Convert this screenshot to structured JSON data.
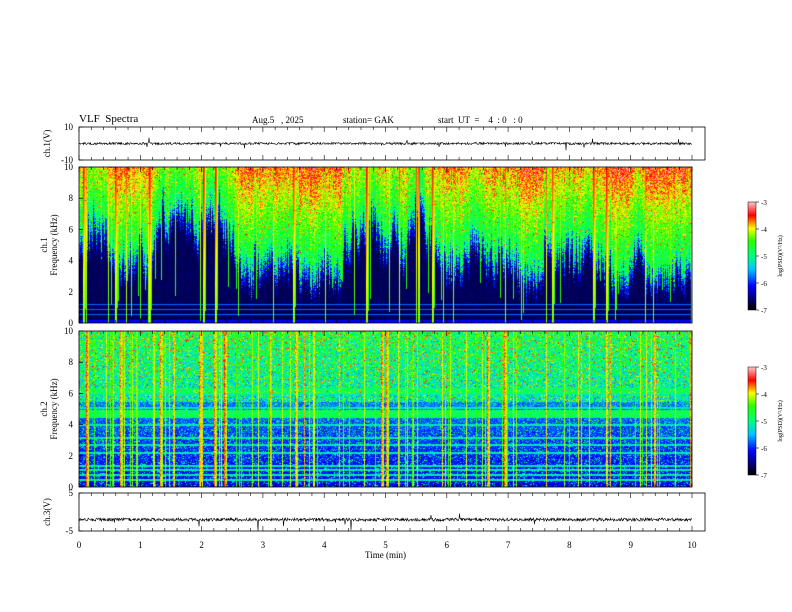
{
  "header": {
    "title": "VLF  Spectra",
    "date": "Aug.5   , 2025",
    "station": "station= GAK",
    "start": "start  UT  =    4  : 0   : 0"
  },
  "chart_data": [
    {
      "type": "line",
      "panel": "ch1-waveform",
      "ylabel": "ch.1(V)",
      "y_ticks": [
        "10",
        "-10"
      ],
      "ylim": [
        -10,
        10
      ],
      "baseline": 0
    },
    {
      "type": "heatmap",
      "panel": "ch1-spectrogram",
      "ylabel_lines": [
        "ch.1",
        "Frequency  (kHz)"
      ],
      "y_ticks": [
        "0",
        "2",
        "4",
        "6",
        "8",
        "10"
      ],
      "ylim": [
        0,
        10
      ],
      "xlim": [
        0,
        10
      ],
      "colorbar": {
        "label": "log(PSD)(V²/Hz)",
        "ticks": [
          "-3",
          "-4",
          "-5",
          "-6",
          "-7"
        ],
        "range": [
          -7,
          -3
        ]
      }
    },
    {
      "type": "heatmap",
      "panel": "ch2-spectrogram",
      "ylabel_lines": [
        "ch.2",
        "Frequency  (kHz)"
      ],
      "y_ticks": [
        "0",
        "2",
        "4",
        "6",
        "8",
        "10"
      ],
      "ylim": [
        0,
        10
      ],
      "xlim": [
        0,
        10
      ],
      "colorbar": {
        "label": "log(PSD)(V²/Hz)",
        "ticks": [
          "-3",
          "-4",
          "-5",
          "-6",
          "-7"
        ],
        "range": [
          -7,
          -3
        ]
      }
    },
    {
      "type": "line",
      "panel": "ch3-waveform",
      "ylabel": "ch.3(V)",
      "y_ticks": [
        "5",
        "-5"
      ],
      "ylim": [
        -5,
        5
      ],
      "baseline": -2
    }
  ],
  "xaxis": {
    "label": "Time  (min)",
    "ticks": [
      "0",
      "1",
      "2",
      "3",
      "4",
      "5",
      "6",
      "7",
      "8",
      "9",
      "10"
    ],
    "range": [
      0,
      10
    ]
  },
  "colors": {
    "black": "#000000",
    "navy": "#00007f",
    "blue": "#0000ff",
    "cyan": "#00ffff",
    "green": "#00ff00",
    "yellow": "#ffff00",
    "red": "#ff0000",
    "pink": "#ffcccc"
  }
}
